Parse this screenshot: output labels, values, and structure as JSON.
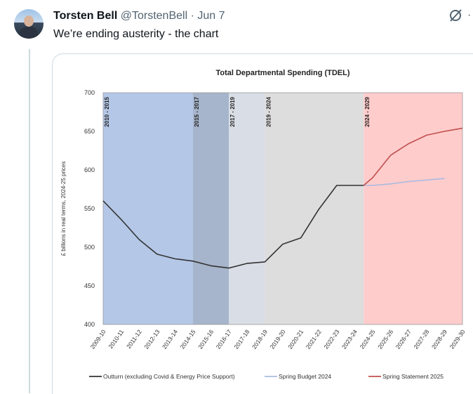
{
  "tweet": {
    "author_name": "Torsten Bell",
    "handle": "@TorstenBell",
    "separator": "·",
    "date": "Jun 7",
    "text": "We’re ending austerity - the chart",
    "more_glyph": "·"
  },
  "icons": {
    "avatar": "profile-photo",
    "grok": "grok-icon",
    "more": "more-options-icon"
  },
  "colors": {
    "band_2010_2015": "#b4c7e7",
    "band_2015_2017": "#a6b5cb",
    "band_2017_2019": "#d9dee6",
    "band_2019_2024": "#dddddd",
    "band_2024_2029": "#ffcccc",
    "outturn": "#333333",
    "spring_budget_2024": "#a9bbe0",
    "spring_statement_2025": "#c0504d"
  },
  "chart_data": {
    "type": "line",
    "title": "Total Departmental Spending (TDEL)",
    "ylabel": "£ billions in real terms, 2024-25 prices",
    "ylim": [
      400,
      700
    ],
    "yticks": [
      "700",
      "650",
      "600",
      "550",
      "500",
      "450",
      "400"
    ],
    "categories": [
      "2009-10",
      "2010-11",
      "2011-12",
      "2012-13",
      "2013-14",
      "2014-15",
      "2015-16",
      "2016-17",
      "2017-18",
      "2018-19",
      "2019-20",
      "2020-21",
      "2021-22",
      "2022-23",
      "2023-24",
      "2024-25",
      "2025-26",
      "2026-27",
      "2027-28",
      "2028-29",
      "2029-30"
    ],
    "bands": [
      {
        "label": "2010 - 2015",
        "from": 0,
        "to": 5,
        "color": "#b4c7e7"
      },
      {
        "label": "2015 - 2017",
        "from": 5,
        "to": 7,
        "color": "#a6b5cb"
      },
      {
        "label": "2017 - 2019",
        "from": 7,
        "to": 9,
        "color": "#d9dee6"
      },
      {
        "label": "2019 - 2024",
        "from": 9,
        "to": 14.5,
        "color": "#dddddd"
      },
      {
        "label": "2024 - 2029",
        "from": 14.5,
        "to": 20,
        "color": "#ffcccc"
      }
    ],
    "series": [
      {
        "name": "Outturn (excluding Covid & Energy Price Support)",
        "color": "#333333",
        "x": [
          0,
          1,
          2,
          3,
          4,
          5,
          6,
          7,
          8,
          9,
          10,
          11,
          12,
          13,
          14,
          14.5
        ],
        "values": [
          560,
          536,
          510,
          491,
          485,
          482,
          476,
          473,
          479,
          481,
          504,
          512,
          549,
          580,
          580,
          580
        ]
      },
      {
        "name": "Spring Budget 2024",
        "color": "#a9bbe0",
        "x": [
          14.5,
          15,
          16,
          17,
          18,
          19
        ],
        "values": [
          580,
          580,
          582,
          585,
          587,
          589
        ]
      },
      {
        "name": "Spring Statement 2025",
        "color": "#c0504d",
        "x": [
          14.5,
          15,
          16,
          17,
          18,
          19,
          20
        ],
        "values": [
          580,
          590,
          619,
          634,
          645,
          650,
          654
        ]
      }
    ],
    "legend_position": "bottom",
    "grid": false
  }
}
